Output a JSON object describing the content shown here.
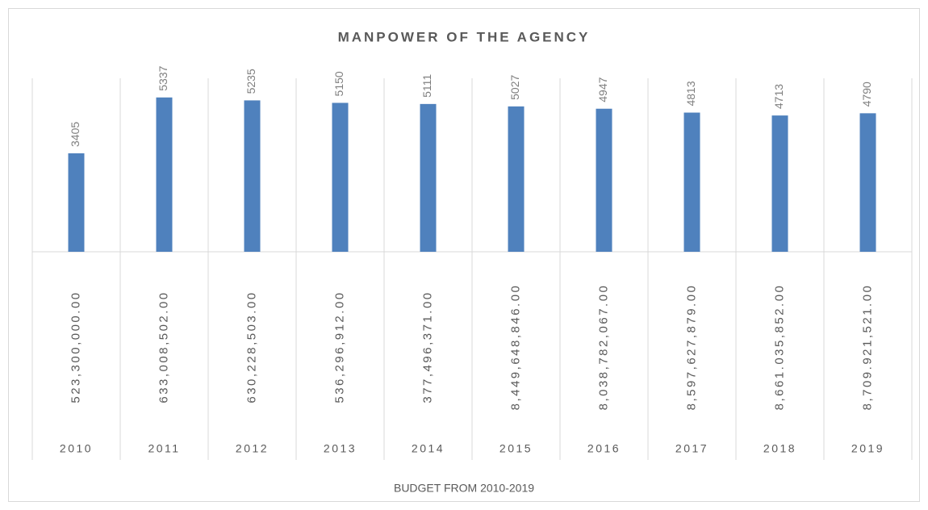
{
  "chart_data": {
    "type": "bar",
    "title": "MANPOWER OF THE AGENCY",
    "x_label": "BUDGET FROM 2010-2019",
    "categories": [
      "2010",
      "2011",
      "2012",
      "2013",
      "2014",
      "2015",
      "2016",
      "2017",
      "2018",
      "2019"
    ],
    "budgets": [
      "523,300,000.00",
      "633,008,502.00",
      "630,228,503.00",
      "536,296,912.00",
      "377,496,371.00",
      "8,449,648,846.00",
      "8,038,782,067.00",
      "8,597,627,879.00",
      "8,661.035,852.00",
      "8,709.921,521.00"
    ],
    "values": [
      3405,
      5337,
      5235,
      5150,
      5111,
      5027,
      4947,
      4813,
      4713,
      4790
    ],
    "color": "#4f81bd",
    "ylim": [
      0,
      6000
    ]
  }
}
